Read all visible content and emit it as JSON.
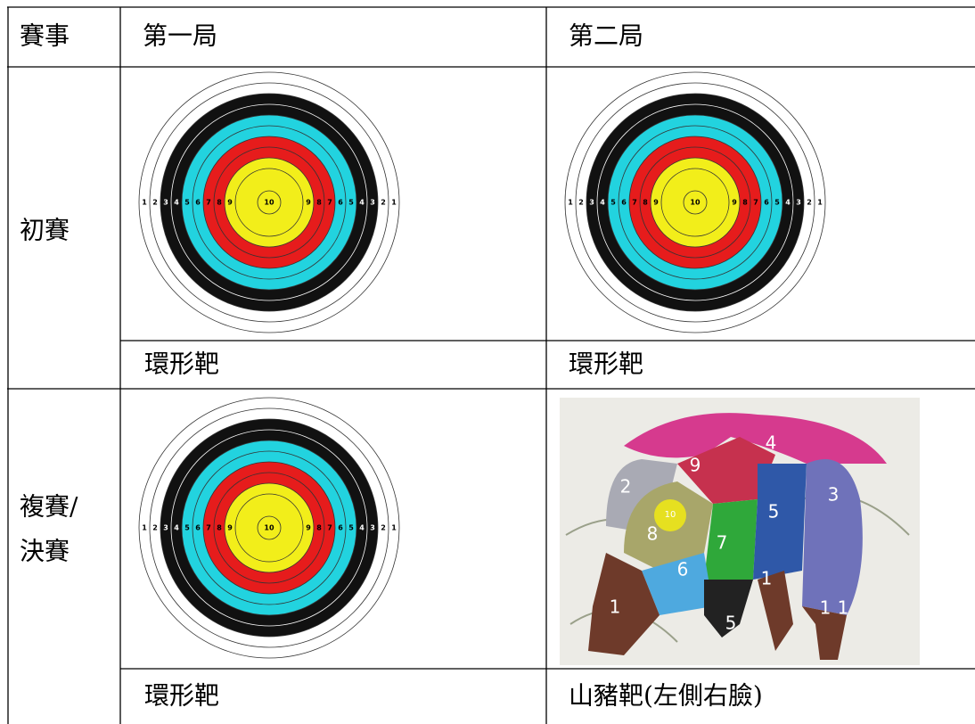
{
  "header": {
    "event": "賽事",
    "round1": "第一局",
    "round2": "第二局"
  },
  "rows": [
    {
      "event_lines": [
        "初賽"
      ],
      "round1": "環形靶",
      "round2": "環形靶"
    },
    {
      "event_lines": [
        "複賽/",
        "決賽"
      ],
      "round1": "環形靶",
      "round2": "山豬靶(左側右臉)"
    }
  ],
  "target": {
    "ring_labels": [
      "1",
      "2",
      "3",
      "4",
      "5",
      "6",
      "7",
      "8",
      "9",
      "10"
    ]
  },
  "boar_target": {
    "zone_labels": [
      "2",
      "9",
      "4",
      "10",
      "8",
      "7",
      "5",
      "3",
      "6",
      "1",
      "1",
      "1",
      "1",
      "5"
    ]
  }
}
